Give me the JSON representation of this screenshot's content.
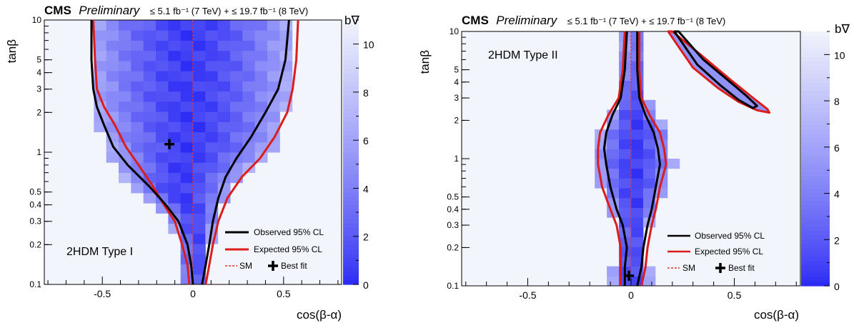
{
  "header": {
    "experiment": "CMS",
    "status": "Preliminary",
    "lumi_text": "≤ 5.1 fb⁻¹ (7 TeV) + ≤ 19.7 fb⁻¹ (8 TeV)"
  },
  "colors": {
    "observed": "#000000",
    "expected": "#dd1c1c",
    "sm_line": "#e8322c",
    "scale_low": "#2d2cf5",
    "scale_high": "#f2f5fb"
  },
  "chart_data": [
    {
      "type": "heatmap",
      "annotation": "2HDM Type I",
      "xlabel": "cos(β-α)",
      "ylabel": "tanβ",
      "zlabel": "b∇",
      "xlim": [
        -0.82,
        0.82
      ],
      "ylim": [
        0.1,
        10
      ],
      "yscale": "log",
      "zlim": [
        0,
        11
      ],
      "x_ticks": [
        "-0.5",
        "0",
        "0.5"
      ],
      "x_tick_values": [
        -0.5,
        0,
        0.5
      ],
      "y_ticks": [
        "0.1",
        "0.2",
        "0.3",
        "0.4",
        "0.5",
        "1",
        "2",
        "3",
        "4",
        "5",
        "10"
      ],
      "y_tick_values": [
        0.1,
        0.2,
        0.3,
        0.4,
        0.5,
        1,
        2,
        3,
        4,
        5,
        10
      ],
      "z_ticks": [
        "0",
        "2",
        "4",
        "6",
        "8",
        "10"
      ],
      "z_tick_values": [
        0,
        2,
        4,
        6,
        8,
        10
      ],
      "best_fit": {
        "x": -0.13,
        "y": 1.15
      },
      "legend": {
        "observed": "Observed 95% CL",
        "expected": "Expected 95% CL",
        "sm": "SM",
        "best_fit": "Best fit"
      },
      "observed_contours": [
        [
          [
            0.0,
            0.1
          ],
          [
            -0.01,
            0.14
          ],
          [
            -0.03,
            0.2
          ],
          [
            -0.08,
            0.3
          ],
          [
            -0.15,
            0.4
          ],
          [
            -0.24,
            0.55
          ],
          [
            -0.36,
            0.8
          ],
          [
            -0.44,
            1.1
          ],
          [
            -0.49,
            1.6
          ],
          [
            -0.53,
            2.2
          ],
          [
            -0.55,
            3.0
          ],
          [
            -0.56,
            5.0
          ],
          [
            -0.56,
            10.0
          ]
        ],
        [
          [
            0.05,
            0.1
          ],
          [
            0.07,
            0.14
          ],
          [
            0.09,
            0.2
          ],
          [
            0.11,
            0.3
          ],
          [
            0.14,
            0.45
          ],
          [
            0.18,
            0.65
          ],
          [
            0.24,
            0.9
          ],
          [
            0.32,
            1.3
          ],
          [
            0.4,
            2.0
          ],
          [
            0.47,
            3.0
          ],
          [
            0.51,
            5.0
          ],
          [
            0.53,
            10.0
          ]
        ]
      ],
      "expected_contours": [
        [
          [
            -0.02,
            0.1
          ],
          [
            -0.03,
            0.14
          ],
          [
            -0.06,
            0.2
          ],
          [
            -0.1,
            0.3
          ],
          [
            -0.16,
            0.4
          ],
          [
            -0.22,
            0.55
          ],
          [
            -0.3,
            0.8
          ],
          [
            -0.37,
            1.1
          ],
          [
            -0.43,
            1.6
          ],
          [
            -0.49,
            2.2
          ],
          [
            -0.53,
            3.0
          ],
          [
            -0.54,
            5.0
          ],
          [
            -0.55,
            10.0
          ]
        ],
        [
          [
            0.07,
            0.1
          ],
          [
            0.09,
            0.14
          ],
          [
            0.11,
            0.2
          ],
          [
            0.14,
            0.3
          ],
          [
            0.19,
            0.45
          ],
          [
            0.27,
            0.65
          ],
          [
            0.37,
            0.9
          ],
          [
            0.45,
            1.3
          ],
          [
            0.52,
            2.0
          ],
          [
            0.55,
            3.0
          ],
          [
            0.57,
            5.0
          ],
          [
            0.58,
            10.0
          ]
        ]
      ],
      "fill_edges": [
        [
          0.1,
          -0.05,
          0.07
        ],
        [
          0.14,
          -0.06,
          0.08
        ],
        [
          0.2,
          -0.07,
          0.1
        ],
        [
          0.3,
          -0.12,
          0.13
        ],
        [
          0.4,
          -0.22,
          0.17
        ],
        [
          0.55,
          -0.36,
          0.22
        ],
        [
          0.8,
          -0.42,
          0.33
        ],
        [
          1.1,
          -0.48,
          0.45
        ],
        [
          1.6,
          -0.52,
          0.5
        ],
        [
          2.2,
          -0.55,
          0.52
        ],
        [
          3.0,
          -0.57,
          0.53
        ],
        [
          5.0,
          -0.57,
          0.54
        ],
        [
          10.0,
          -0.58,
          0.55
        ]
      ]
    },
    {
      "type": "heatmap",
      "annotation": "2HDM Type II",
      "xlabel": "cos(β-α)",
      "ylabel": "tanβ",
      "zlabel": "b∇",
      "xlim": [
        -0.82,
        0.82
      ],
      "ylim": [
        0.1,
        10
      ],
      "yscale": "log",
      "zlim": [
        0,
        11
      ],
      "x_ticks": [
        "-0.5",
        "0",
        "0.5"
      ],
      "x_tick_values": [
        -0.5,
        0,
        0.5
      ],
      "y_ticks": [
        "0.1",
        "0.2",
        "0.3",
        "0.4",
        "0.5",
        "1",
        "2",
        "3",
        "4",
        "5",
        "10"
      ],
      "y_tick_values": [
        0.1,
        0.2,
        0.3,
        0.4,
        0.5,
        1,
        2,
        3,
        4,
        5,
        10
      ],
      "z_ticks": [
        "0",
        "2",
        "4",
        "6",
        "8",
        "10"
      ],
      "z_tick_values": [
        0,
        2,
        4,
        6,
        8,
        10
      ],
      "best_fit": {
        "x": -0.01,
        "y": 0.12
      },
      "legend": {
        "observed": "Observed 95% CL",
        "expected": "Expected 95% CL",
        "sm": "SM",
        "best_fit": "Best fit"
      },
      "observed_contours": [
        [
          [
            -0.03,
            0.1
          ],
          [
            -0.03,
            0.14
          ],
          [
            -0.02,
            0.2
          ],
          [
            -0.04,
            0.3
          ],
          [
            -0.07,
            0.4
          ],
          [
            -0.1,
            0.6
          ],
          [
            -0.12,
            0.9
          ],
          [
            -0.13,
            1.2
          ],
          [
            -0.12,
            1.6
          ],
          [
            -0.09,
            2.2
          ],
          [
            -0.05,
            3.0
          ],
          [
            -0.03,
            5.0
          ],
          [
            -0.02,
            10.0
          ]
        ],
        [
          [
            0.03,
            0.1
          ],
          [
            0.05,
            0.14
          ],
          [
            0.06,
            0.2
          ],
          [
            0.08,
            0.3
          ],
          [
            0.1,
            0.4
          ],
          [
            0.12,
            0.6
          ],
          [
            0.14,
            0.9
          ],
          [
            0.13,
            1.2
          ],
          [
            0.11,
            1.6
          ],
          [
            0.07,
            2.2
          ],
          [
            0.04,
            3.0
          ],
          [
            0.03,
            5.0
          ],
          [
            0.03,
            10.0
          ]
        ],
        [
          [
            0.23,
            10.0
          ],
          [
            0.35,
            6.0
          ],
          [
            0.48,
            4.0
          ],
          [
            0.56,
            3.1
          ],
          [
            0.61,
            2.6
          ],
          [
            0.59,
            2.5
          ],
          [
            0.52,
            2.9
          ],
          [
            0.43,
            3.8
          ],
          [
            0.32,
            5.5
          ],
          [
            0.24,
            8.5
          ],
          [
            0.21,
            10.0
          ]
        ]
      ],
      "expected_contours": [
        [
          [
            -0.05,
            0.1
          ],
          [
            -0.05,
            0.14
          ],
          [
            -0.05,
            0.2
          ],
          [
            -0.07,
            0.3
          ],
          [
            -0.1,
            0.4
          ],
          [
            -0.14,
            0.6
          ],
          [
            -0.16,
            0.9
          ],
          [
            -0.16,
            1.2
          ],
          [
            -0.15,
            1.6
          ],
          [
            -0.11,
            2.2
          ],
          [
            -0.06,
            3.0
          ],
          [
            -0.04,
            5.0
          ],
          [
            -0.03,
            10.0
          ]
        ],
        [
          [
            0.05,
            0.1
          ],
          [
            0.07,
            0.14
          ],
          [
            0.08,
            0.2
          ],
          [
            0.1,
            0.3
          ],
          [
            0.12,
            0.4
          ],
          [
            0.14,
            0.6
          ],
          [
            0.17,
            0.9
          ],
          [
            0.16,
            1.2
          ],
          [
            0.14,
            1.6
          ],
          [
            0.09,
            2.2
          ],
          [
            0.05,
            3.0
          ],
          [
            0.04,
            5.0
          ],
          [
            0.04,
            10.0
          ]
        ],
        [
          [
            0.2,
            10.0
          ],
          [
            0.34,
            6.5
          ],
          [
            0.48,
            4.2
          ],
          [
            0.58,
            3.1
          ],
          [
            0.66,
            2.45
          ],
          [
            0.67,
            2.3
          ],
          [
            0.61,
            2.4
          ],
          [
            0.52,
            2.8
          ],
          [
            0.42,
            3.6
          ],
          [
            0.3,
            5.2
          ],
          [
            0.22,
            8.0
          ],
          [
            0.18,
            10.0
          ]
        ]
      ],
      "fill_edges": [
        [
          0.1,
          -0.1,
          0.1
        ],
        [
          0.14,
          -0.09,
          0.09
        ],
        [
          0.2,
          -0.07,
          0.08
        ],
        [
          0.3,
          -0.07,
          0.09
        ],
        [
          0.4,
          -0.1,
          0.12
        ],
        [
          0.6,
          -0.15,
          0.17
        ],
        [
          0.9,
          -0.18,
          0.21
        ],
        [
          1.2,
          -0.17,
          0.2
        ],
        [
          1.6,
          -0.15,
          0.19
        ],
        [
          2.2,
          -0.1,
          0.13
        ],
        [
          3.0,
          -0.06,
          0.07
        ],
        [
          5.0,
          -0.04,
          0.05
        ],
        [
          10.0,
          -0.03,
          0.04
        ]
      ]
    }
  ]
}
